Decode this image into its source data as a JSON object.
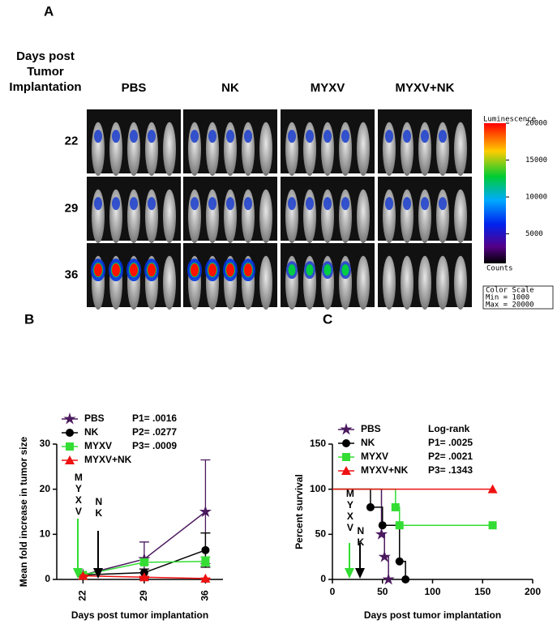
{
  "panel_a": {
    "label": "A",
    "row_header": [
      "Days post",
      "Tumor",
      "Implantation"
    ],
    "columns": [
      "PBS",
      "NK",
      "MYXV",
      "MYXV+NK"
    ],
    "rows": [
      "22",
      "29",
      "36"
    ],
    "colorbar": {
      "title": "Luminescence",
      "lim": [
        1000,
        20000
      ],
      "ticks": [
        20000,
        15000,
        10000,
        5000
      ],
      "bottom_label": "Counts"
    },
    "scale_box": [
      "Color Scale",
      "Min = 1000",
      "Max = 20000"
    ]
  },
  "chart_data": [
    {
      "type": "line",
      "panel_label": "B",
      "ylabel": "Mean fold increase in tumor size",
      "xlabel": "Days post tumor implantation",
      "x": [
        22,
        29,
        36
      ],
      "xlim": [
        19,
        38
      ],
      "xticks": [
        22,
        29,
        36
      ],
      "ylim": [
        0,
        30
      ],
      "yticks": [
        0,
        10,
        20,
        30
      ],
      "series": [
        {
          "name": "PBS",
          "color": "#4b1a5e",
          "marker": "star",
          "values": [
            1,
            4.5,
            15
          ],
          "errors": [
            0.3,
            3.8,
            11.5
          ]
        },
        {
          "name": "NK",
          "color": "#000000",
          "marker": "circle",
          "values": [
            1,
            1.5,
            6.5
          ],
          "errors": [
            0.3,
            0.8,
            3.8
          ]
        },
        {
          "name": "MYXV",
          "color": "#33dd33",
          "marker": "square",
          "values": [
            1,
            3.8,
            4
          ],
          "errors": [
            0.3,
            0.5,
            1
          ]
        },
        {
          "name": "MYXV+NK",
          "color": "#ee1111",
          "marker": "triangle",
          "values": [
            0.8,
            0.5,
            0.2
          ],
          "errors": [
            0.2,
            0.2,
            0.1
          ]
        }
      ],
      "stats": [
        "P1= .0016",
        "P2= .0277",
        "P3= .0009"
      ],
      "annotations": [
        {
          "text": "MYXV",
          "color": "#33dd33"
        },
        {
          "text": "NK",
          "color": "#000000"
        }
      ]
    },
    {
      "type": "step",
      "panel_label": "C",
      "ylabel": "Percent survival",
      "xlabel": "Days post tumor implantation",
      "xlim": [
        0,
        200
      ],
      "xticks": [
        0,
        50,
        100,
        150,
        200
      ],
      "ylim": [
        0,
        150
      ],
      "yticks": [
        0,
        50,
        100,
        150
      ],
      "series": [
        {
          "name": "PBS",
          "color": "#4b1a5e",
          "marker": "star",
          "x": [
            0,
            49,
            52,
            56
          ],
          "values": [
            100,
            50,
            25,
            0
          ]
        },
        {
          "name": "NK",
          "color": "#000000",
          "marker": "circle",
          "x": [
            0,
            38,
            50,
            67,
            73
          ],
          "values": [
            100,
            80,
            60,
            20,
            0
          ]
        },
        {
          "name": "MYXV",
          "color": "#33dd33",
          "marker": "square",
          "x": [
            0,
            63,
            67,
            160
          ],
          "values": [
            100,
            80,
            60,
            60
          ]
        },
        {
          "name": "MYXV+NK",
          "color": "#ee1111",
          "marker": "triangle",
          "x": [
            0,
            160
          ],
          "values": [
            100,
            100
          ]
        }
      ],
      "stats": [
        "Log-rank",
        "P1= .0025",
        "P2= .0021",
        "P3= .1343"
      ],
      "annotations": [
        {
          "text": "MYXV",
          "color": "#33dd33"
        },
        {
          "text": "NK",
          "color": "#000000"
        }
      ]
    }
  ]
}
